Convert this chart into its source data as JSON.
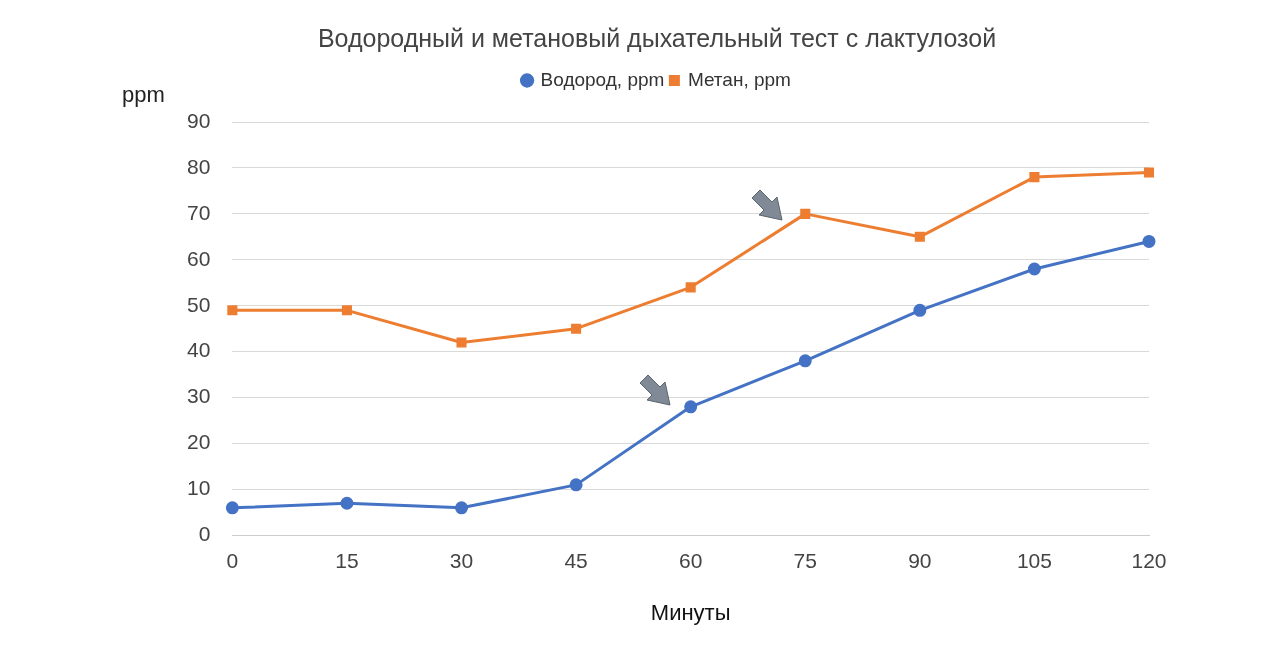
{
  "chart_data": {
    "type": "line",
    "title": "Водородный и метановый дыхательный тест с лактулозой",
    "xlabel": "Минуты",
    "ylabel": "ppm",
    "categories": [
      "0",
      "15",
      "30",
      "45",
      "60",
      "75",
      "90",
      "105",
      "120"
    ],
    "series": [
      {
        "name": "Водород, ppm",
        "color": "#4472c4",
        "marker": "circle",
        "values": [
          6,
          7,
          6,
          11,
          28,
          38,
          49,
          58,
          64
        ]
      },
      {
        "name": "Метан, ppm",
        "color": "#ed7d31",
        "marker": "square",
        "values": [
          49,
          49,
          42,
          45,
          54,
          70,
          65,
          78,
          79
        ]
      }
    ],
    "ylim": [
      0,
      90
    ],
    "yticks": [
      0,
      10,
      20,
      30,
      40,
      50,
      60,
      70,
      80,
      90
    ],
    "grid": "y",
    "legend": "top",
    "line_style": "solid"
  }
}
